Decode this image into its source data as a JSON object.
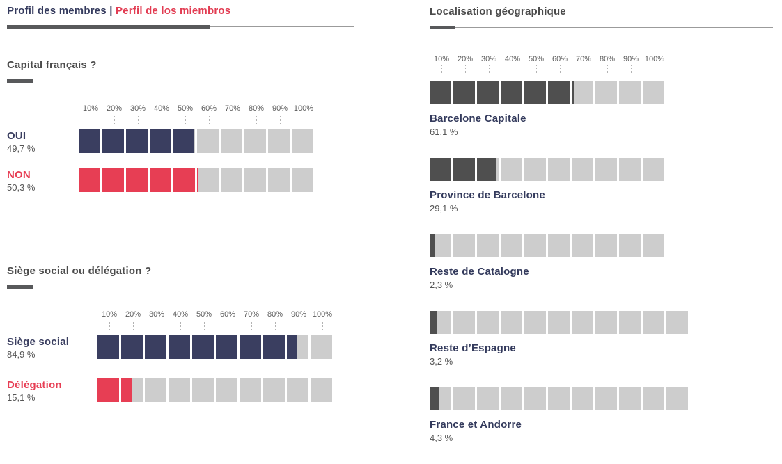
{
  "header": {
    "title_fr": "Profil des membres",
    "separator": "|",
    "title_es": "Perfil de los miembros"
  },
  "colors": {
    "navy": "#3a3e60",
    "red": "#e73e54",
    "dark": "#4f4f4f",
    "light": "#cdcdcd"
  },
  "scale_ticks": [
    "10%",
    "20%",
    "30%",
    "40%",
    "50%",
    "60%",
    "70%",
    "80%",
    "90%",
    "100%"
  ],
  "chart_data": [
    {
      "type": "bar",
      "title": "Capital français ?",
      "xlabel": "",
      "ylabel": "",
      "xlim": [
        0,
        100
      ],
      "unit": "%",
      "tick_labels": [
        "10%",
        "20%",
        "30%",
        "40%",
        "50%",
        "60%",
        "70%",
        "80%",
        "90%",
        "100%"
      ],
      "series": [
        {
          "name": "OUI",
          "value": 49.7,
          "display": "49,7 %",
          "color": "navy",
          "segments": 10
        },
        {
          "name": "NON",
          "value": 50.3,
          "display": "50,3 %",
          "color": "red",
          "segments": 10
        }
      ]
    },
    {
      "type": "bar",
      "title": "Siège social ou délégation ?",
      "xlabel": "",
      "ylabel": "",
      "xlim": [
        0,
        100
      ],
      "unit": "%",
      "tick_labels": [
        "10%",
        "20%",
        "30%",
        "40%",
        "50%",
        "60%",
        "70%",
        "80%",
        "90%",
        "100%"
      ],
      "series": [
        {
          "name": "Siège social",
          "value": 84.9,
          "display": "84,9 %",
          "color": "navy",
          "segments": 10
        },
        {
          "name": "Délégation",
          "value": 15.1,
          "display": "15,1 %",
          "color": "red",
          "segments": 10
        }
      ]
    },
    {
      "type": "bar",
      "title": "Localisation géographique",
      "xlabel": "",
      "ylabel": "",
      "xlim": [
        0,
        100
      ],
      "unit": "%",
      "tick_labels": [
        "10%",
        "20%",
        "30%",
        "40%",
        "50%",
        "60%",
        "70%",
        "80%",
        "90%",
        "100%"
      ],
      "series": [
        {
          "name": "Barcelone Capitale",
          "value": 61.1,
          "display": "61,1 %",
          "color": "dark",
          "segments": 10
        },
        {
          "name": "Province de Barcelone",
          "value": 29.1,
          "display": "29,1 %",
          "color": "dark",
          "segments": 10
        },
        {
          "name": "Reste de Catalogne",
          "value": 2.3,
          "display": "2,3 %",
          "color": "dark",
          "segments": 10
        },
        {
          "name": "Reste d’Espagne",
          "value": 3.2,
          "display": "3,2 %",
          "color": "dark",
          "segments": 11
        },
        {
          "name": "France et Andorre",
          "value": 4.3,
          "display": "4,3 %",
          "color": "dark",
          "segments": 11
        }
      ]
    }
  ]
}
